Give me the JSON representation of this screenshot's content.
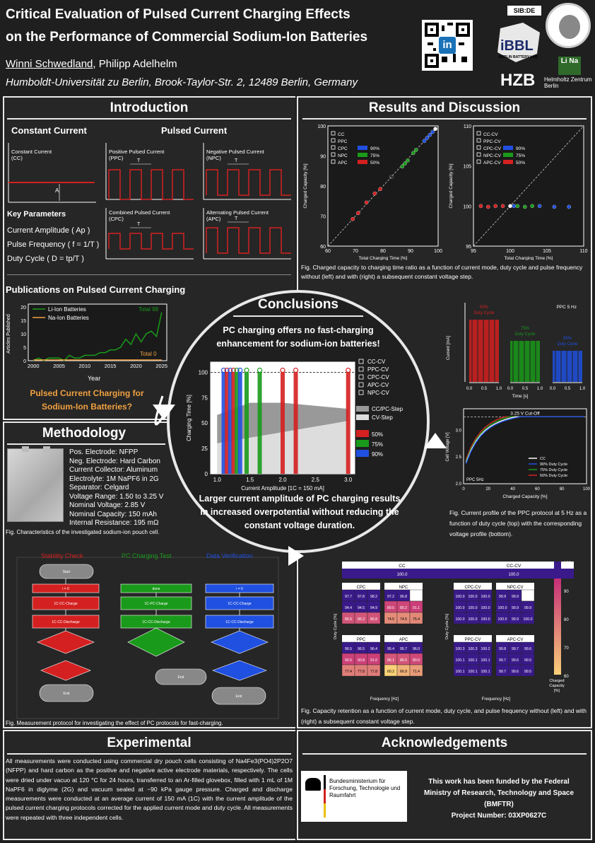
{
  "header": {
    "title_line1": "Critical Evaluation of Pulsed Current Charging Effects",
    "title_line2": "on the Performance of Commercial Sodium-Ion Batteries",
    "author1": "Winni Schwedland",
    "author_sep": ", ",
    "author2": "Philipp Adelhelm",
    "affiliation": "Humboldt-Universität zu Berlin, Brook-Taylor-Str. 2, 12489 Berlin, Germany",
    "logo_sibde": "SIB:DE",
    "logo_bbl": "iBBL",
    "logo_bbl_sub": "BERLIN BATTERY LAB",
    "logo_hzb": "HZB",
    "logo_hzb_name": "Helmholtz Zentrum Berlin",
    "logo_lina": "Li Na"
  },
  "introduction": {
    "title": "Introduction",
    "cc_head": "Constant Current",
    "pc_head": "Pulsed Current",
    "cc_label": "Constant Current (CC)",
    "ppc_label": "Positive Pulsed Current (PPC)",
    "npc_label": "Negative Pulsed Current (NPC)",
    "cpc_label": "Combined Pulsed Current (CPC)",
    "apc_label": "Alternating Pulsed Current (APC)",
    "key_params": "Key Parameters",
    "param1": "Current Amplitude ( Ap )",
    "param2": "Pulse Frequency ( f = 1/T )",
    "param3": "Duty Cycle ( D = tp/T )",
    "pub_title": "Publications on Pulsed Current Charging",
    "pub_legend1": "Li-Ion Batteries",
    "pub_legend2": "Na-Ion Batteries",
    "pub_total98": "Total 98",
    "pub_total0": "Total 0",
    "pub_ylabel": "Articles Published",
    "pub_xlabel": "Year",
    "pub_xticks": [
      "2000",
      "2005",
      "2010",
      "2015",
      "2020",
      "2025"
    ],
    "pub_yticks": [
      "0",
      "5",
      "10",
      "15",
      "20"
    ],
    "pc_for_sib1": "Pulsed Current Charging for",
    "pc_for_sib2": "Sodium-Ion Batteries?"
  },
  "methodology": {
    "title": "Methodology",
    "props": [
      "Pos. Electrode: NFPP",
      "Neg. Electrode: Hard Carbon",
      "Current Collector: Aluminum",
      "Electrolyte: 1M NaPF6 in 2G",
      "Separator: Celgard",
      "Voltage Range: 1.50 to 3.25 V",
      "Nominal Voltage: 2.85 V",
      "Nominal Capacity: 150 mAh",
      "Internal Resistance: 195 mΩ"
    ],
    "cell_caption": "Fig. Characteristics of the investigated sodium-ion pouch cell.",
    "flow_col1": "Stability Check",
    "flow_col2": "PC Charging Test",
    "flow_col3": "Data Verification",
    "flow_caption": "Fig. Measurement protocol for investigating the effect of PC protocols for fast-charging."
  },
  "conclusions": {
    "title": "Conclusions",
    "text1": "PC charging offers no fast-charging enhancement for sodium-ion batteries!",
    "text2": "Larger current amplitude of PC charging results in increased overpotential without reducing the constant voltage duration.",
    "ylabel": "Charging Time [%]",
    "xlabel": "Current Amplitude [1C = 150 mA]",
    "legend": [
      "CC-CV",
      "PPC-CV",
      "CPC-CV",
      "APC-CV",
      "NPC-CV"
    ],
    "legend2": [
      "CC/PC-Step",
      "CV-Step"
    ],
    "legend3": [
      "50%",
      "75%",
      "90%"
    ],
    "xticks": [
      "1.0",
      "1.5",
      "2.0",
      "2.5",
      "3.0"
    ],
    "yticks": [
      "0",
      "25",
      "50",
      "75",
      "100"
    ]
  },
  "results": {
    "title": "Results and Discussion",
    "fig1_caption": "Fig. Charged capacity to charging time ratio as a function of current mode, duty cycle and pulse frequency without (left) and with (right) a subsequent constant voltage step.",
    "plot1_legend": [
      "CC",
      "PPC",
      "CPC",
      "NPC",
      "APC"
    ],
    "plot2_legend": [
      "CC-CV",
      "PPC-CV",
      "CPC-CV",
      "NPC-CV",
      "APC-CV"
    ],
    "duty_labels": [
      "90%",
      "75%",
      "50%"
    ],
    "plot1_xlabel": "Total Charging Time [%]",
    "plot1_ylabel": "Charged Capacity [%]",
    "plot1_xticks": [
      "60",
      "70",
      "80",
      "90",
      "100"
    ],
    "plot1_yticks": [
      "60",
      "70",
      "80",
      "90",
      "100"
    ],
    "plot2_xticks": [
      "95",
      "100",
      "105",
      "110"
    ],
    "plot2_yticks": [
      "95",
      "100",
      "105",
      "110"
    ],
    "ppc_title": "PPC 5 Hz",
    "ppc_50": "50% Duty Cycle",
    "ppc_75": "75% Duty Cycle",
    "ppc_90": "90% Duty Cycle",
    "ppc_ylabel": "Current [mA]",
    "ppc_xlabel": "Time [s]",
    "volt_ylabel": "Cell Voltage [V]",
    "volt_xlabel": "Charged Capacity [%]",
    "cutoff": "3.25 V Cut-Off",
    "volt_legend": [
      "CC",
      "90% Duty Cycle",
      "75% Duty Cycle",
      "50% Duty Cycle"
    ],
    "volt_ppc": "PPC 5Hz",
    "fig2_caption": "Fig. Current profile of the PPC protocol at 5 Hz as a function of duty cycle (top) with the corresponding voltage profile (bottom).",
    "heat_cc": "CC",
    "heat_cccv": "CC-CV",
    "heat_100": "100.0",
    "heat_ylabel": "Duty Cycle [%]",
    "heat_xlabel": "Frequency [Hz]",
    "heat_cbar": "Charged Capacity [%]",
    "heat_caption": "Fig. Capacity retention as a function of current mode, duty cycle, and pulse frequency without (left) and with (right) a subsequent constant voltage step."
  },
  "experimental": {
    "title": "Experimental",
    "text": "All measurements were conducted using commercial dry pouch cells consisting of Na4Fe3(PO4)2P2O7 (NFPP) and hard carbon as the positive and negative active electrode materials, respectively. The cells were dried under vacuo at 120 °C for 24 hours, transferred to an Ar-filled glovebox, filled with 1 mL of 1M NaPF6 in diglyme (2G) and vacuum sealed at −90 kPa gauge pressure. Charged and discharge measurements were conducted at an average current of 150 mA (1C) with the current amplitude of the pulsed current charging protocols corrected for the applied current mode and duty cycle. All measurements were repeated with three independent cells."
  },
  "acknowledgements": {
    "title": "Acknowledgements",
    "bmftr": "Bundesministerium für Forschung, Technologie und Raumfahrt",
    "text1": "This work has been funded by the Federal",
    "text2": "Ministry of Research, Technology and Space",
    "text3": "(BMFTR)",
    "text4": "Project Number: 03XP0627C"
  },
  "colors": {
    "red": "#d42020",
    "green": "#1a9a1a",
    "blue": "#2050e0",
    "orange": "#f0a040",
    "bg": "#1f1f1f"
  }
}
